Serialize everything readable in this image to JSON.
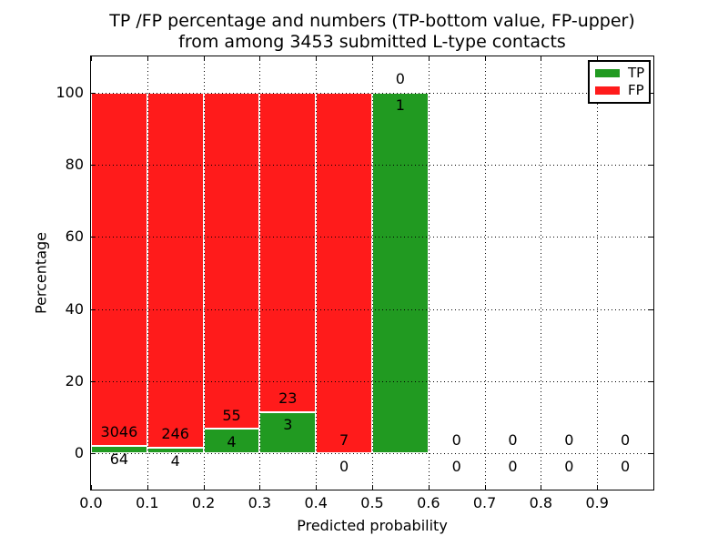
{
  "chart_data": {
    "type": "bar",
    "stacked": true,
    "title": "TP /FP percentage and numbers (TP-bottom value, FP-upper)\nfrom among 3453 submitted L-type contacts",
    "title_line1": "TP /FP percentage and numbers (TP-bottom value, FP-upper)",
    "title_line2": "from among 3453 submitted L-type contacts",
    "xlabel": "Predicted probability",
    "ylabel": "Percentage",
    "total_submitted_contacts": 3453,
    "bin_edges": [
      0.0,
      0.1,
      0.2,
      0.3,
      0.4,
      0.5,
      0.6,
      0.7,
      0.8,
      0.9,
      1.0
    ],
    "series": [
      {
        "name": "TP",
        "color": "#219a21",
        "counts": [
          64,
          4,
          4,
          3,
          0,
          1,
          0,
          0,
          0,
          0
        ]
      },
      {
        "name": "FP",
        "color": "#ff1b1b",
        "counts": [
          3046,
          246,
          55,
          23,
          7,
          0,
          0,
          0,
          0,
          0
        ]
      }
    ],
    "tp_percent_by_bin": [
      2.06,
      1.6,
      6.78,
      11.54,
      0.0,
      100.0,
      null,
      null,
      null,
      null
    ],
    "xticks": {
      "values": [
        0.0,
        0.1,
        0.2,
        0.3,
        0.4,
        0.5,
        0.6,
        0.7,
        0.8,
        0.9
      ],
      "labels": [
        "0.0",
        "0.1",
        "0.2",
        "0.3",
        "0.4",
        "0.5",
        "0.6",
        "0.7",
        "0.8",
        "0.9"
      ]
    },
    "yticks": {
      "values": [
        0,
        20,
        40,
        60,
        80,
        100
      ],
      "labels": [
        "0",
        "20",
        "40",
        "60",
        "80",
        "100"
      ]
    },
    "xlim": [
      0.0,
      1.0
    ],
    "ylim": [
      -10,
      110
    ],
    "grid": true,
    "legend": {
      "position": "upper right",
      "entries": [
        "TP",
        "FP"
      ]
    },
    "colors": {
      "tp": "#219a21",
      "fp": "#ff1b1b",
      "bar_edge": "#ffffff",
      "grid": "#000000",
      "text": "#000000",
      "background": "#ffffff"
    }
  }
}
